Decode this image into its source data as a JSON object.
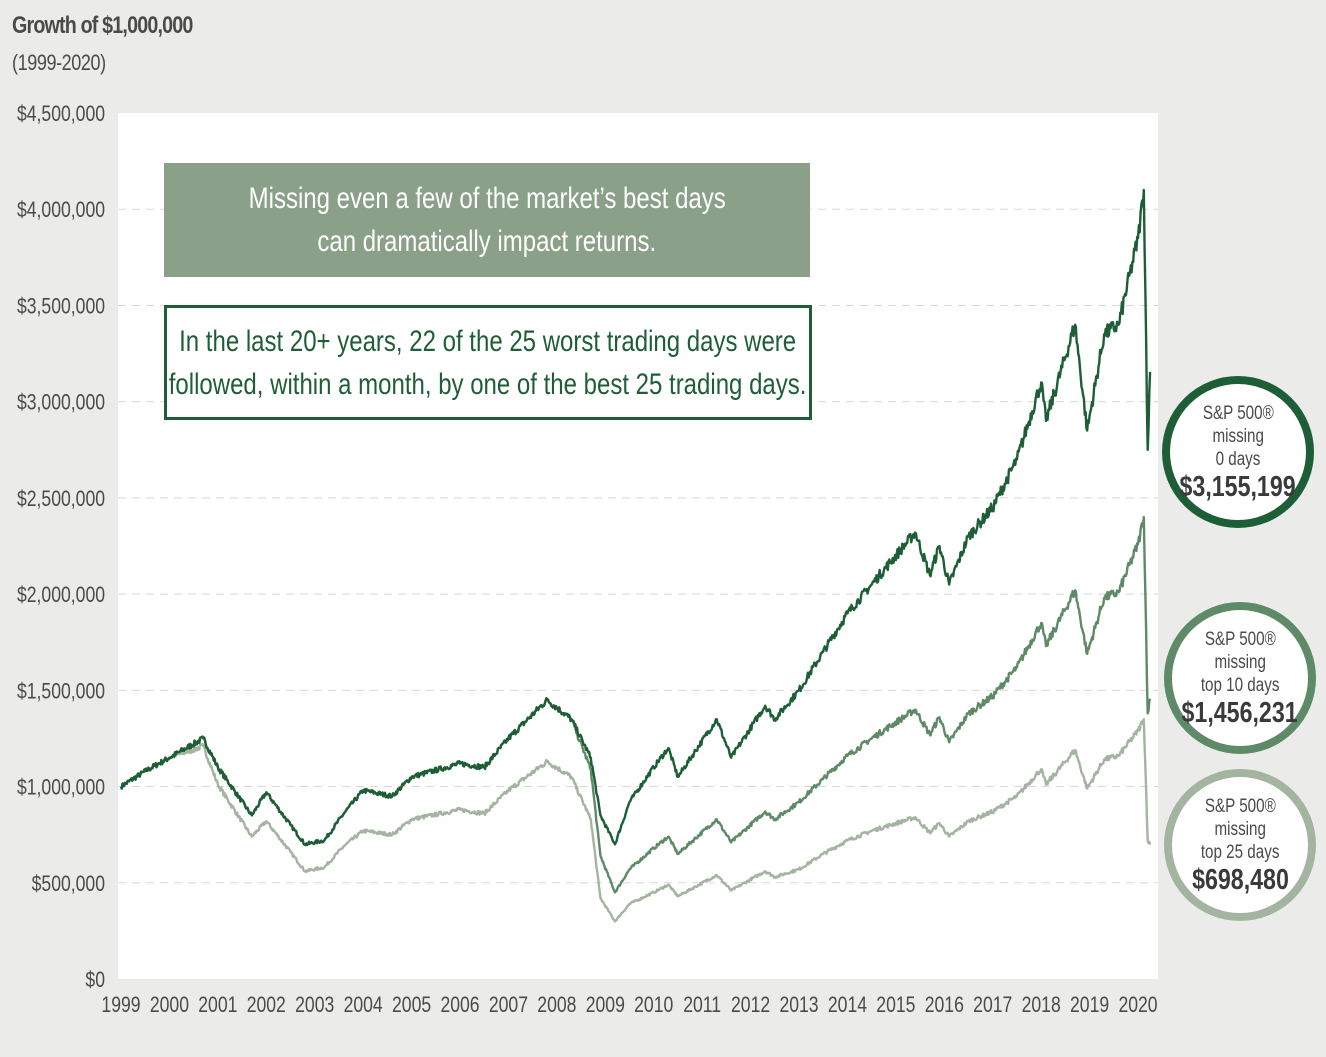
{
  "chart_data": {
    "type": "line",
    "title": "Growth of $1,000,000",
    "subtitle": "(1999-2020)",
    "xlabel": "",
    "ylabel": "",
    "ylim": [
      0,
      4500000
    ],
    "xlim": [
      1999,
      2020.4
    ],
    "grid": "horizontal dashed",
    "yticks": [
      "$0",
      "$500,000",
      "$1,000,000",
      "$1,500,000",
      "$2,000,000",
      "$2,500,000",
      "$3,000,000",
      "$3,500,000",
      "$4,000,000",
      "$4,500,000"
    ],
    "xticks": [
      "1999",
      "2000",
      "2001",
      "2002",
      "2003",
      "2004",
      "2005",
      "2006",
      "2007",
      "2008",
      "2009",
      "2010",
      "2011",
      "2012",
      "2013",
      "2014",
      "2015",
      "2016",
      "2017",
      "2018",
      "2019",
      "2020"
    ],
    "x": [
      1999.0,
      1999.5,
      2000.0,
      2000.7,
      2001.0,
      2001.7,
      2002.0,
      2002.5,
      2002.8,
      2003.2,
      2003.6,
      2004.0,
      2004.6,
      2005.0,
      2006.0,
      2006.5,
      2007.0,
      2007.8,
      2008.3,
      2008.7,
      2008.9,
      2009.2,
      2009.5,
      2010.0,
      2010.3,
      2010.5,
      2011.3,
      2011.6,
      2012.3,
      2012.5,
      2013.0,
      2013.5,
      2014.0,
      2014.5,
      2015.4,
      2015.7,
      2015.9,
      2016.1,
      2016.5,
      2017.0,
      2017.5,
      2018.0,
      2018.1,
      2018.7,
      2018.95,
      2019.3,
      2019.6,
      2020.0,
      2020.12,
      2020.2,
      2020.25
    ],
    "series": [
      {
        "name": "S&P 500® missing 0 days",
        "color": "#1e5e36",
        "values": [
          1000000,
          1080000,
          1150000,
          1250000,
          1100000,
          850000,
          970000,
          800000,
          700000,
          720000,
          860000,
          980000,
          950000,
          1050000,
          1120000,
          1100000,
          1250000,
          1450000,
          1350000,
          1150000,
          850000,
          700000,
          920000,
          1100000,
          1200000,
          1050000,
          1350000,
          1150000,
          1420000,
          1350000,
          1500000,
          1700000,
          1900000,
          2050000,
          2320000,
          2100000,
          2250000,
          2050000,
          2300000,
          2450000,
          2700000,
          3100000,
          2900000,
          3400000,
          2850000,
          3350000,
          3400000,
          3850000,
          4100000,
          2750000,
          3155199
        ]
      },
      {
        "name": "S&P 500® missing top 10 days",
        "color": "#5f8a67",
        "values": [
          1000000,
          1080000,
          1150000,
          1250000,
          1100000,
          850000,
          970000,
          800000,
          700000,
          720000,
          860000,
          980000,
          950000,
          1050000,
          1120000,
          1100000,
          1250000,
          1450000,
          1350000,
          1090000,
          640000,
          450000,
          570000,
          680000,
          740000,
          650000,
          830000,
          710000,
          870000,
          830000,
          920000,
          1040000,
          1160000,
          1250000,
          1400000,
          1270000,
          1360000,
          1230000,
          1380000,
          1470000,
          1620000,
          1850000,
          1730000,
          2020000,
          1690000,
          1980000,
          2010000,
          2260000,
          2400000,
          1380000,
          1456231
        ]
      },
      {
        "name": "S&P 500® missing top 25 days",
        "color": "#a3b5a0",
        "values": [
          1000000,
          1080000,
          1150000,
          1210000,
          1010000,
          740000,
          820000,
          660000,
          560000,
          580000,
          690000,
          770000,
          750000,
          830000,
          880000,
          860000,
          980000,
          1130000,
          1050000,
          830000,
          420000,
          300000,
          390000,
          450000,
          490000,
          430000,
          540000,
          460000,
          560000,
          530000,
          570000,
          650000,
          720000,
          770000,
          840000,
          760000,
          810000,
          740000,
          820000,
          870000,
          950000,
          1090000,
          1010000,
          1190000,
          990000,
          1140000,
          1160000,
          1290000,
          1350000,
          720000,
          698480
        ]
      }
    ],
    "callouts": [
      {
        "lines": [
          "S&P 500®",
          "missing",
          "0 days"
        ],
        "value": "$3,155,199",
        "color": "#1e5e36"
      },
      {
        "lines": [
          "S&P 500®",
          "missing",
          "top 10 days"
        ],
        "value": "$1,456,231",
        "color": "#5f8a67"
      },
      {
        "lines": [
          "S&P 500®",
          "missing",
          "top 25 days"
        ],
        "value": "$698,480",
        "color": "#a3b5a0"
      }
    ],
    "annotations": [
      "Missing even a few of the market’s best days can dramatically impact returns.",
      "In the last 20+ years, 22 of the 25 worst trading days were followed, within a month, by one of the best 25 trading days."
    ]
  },
  "annotation_box1": {
    "line1": "Missing even a few of the market’s best days",
    "line2": "can dramatically impact returns."
  },
  "annotation_box2": {
    "line1": "In the last 20+ years, 22 of the 25 worst trading days were",
    "line2": "followed, within a month, by one of the best 25 trading days."
  }
}
